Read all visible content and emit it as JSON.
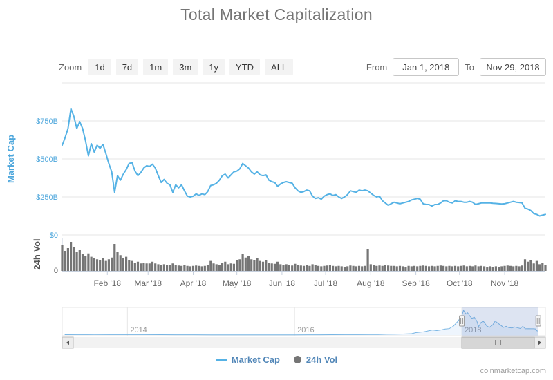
{
  "header": {
    "title": "Total Market Capitalization"
  },
  "toolbar": {
    "zoom_label": "Zoom",
    "buttons": [
      "1d",
      "7d",
      "1m",
      "3m",
      "1y",
      "YTD",
      "ALL"
    ],
    "from_label": "From",
    "from_value": "Jan 1, 2018",
    "to_label": "To",
    "to_value": "Nov 29, 2018"
  },
  "legend": {
    "market_cap": "Market Cap",
    "volume": "24h Vol"
  },
  "footer": {
    "credit": "coinmarketcap.com"
  },
  "colors": {
    "market_cap_line": "#55B2E5",
    "axis_label_blue": "#4EA7DC",
    "volume_gray": "#757575",
    "volume_axis_text": "#666666",
    "legend_text": "#5287B8",
    "grid_line": "#e6e6e6",
    "axis_line": "#c5cfdd",
    "x_label_gray": "#666666",
    "nav_line": "#79b6e4",
    "nav_fill": "rgba(124,181,236,0.13)",
    "selection_mask": "rgba(102,133,194,0.22)",
    "nav_year_label": "#999999",
    "scrollbar_track": "#f2f2f2",
    "scrollbar_thumb": "#d6d6d6",
    "scrollbar_border": "#ababab"
  },
  "chart_data": {
    "type": "line",
    "title": "Total Market Capitalization",
    "x_range": {
      "start": "Jan 1, 2018",
      "end": "Nov 29, 2018",
      "total_days": 332,
      "step_days": 2
    },
    "x_ticks": [
      {
        "day": 31,
        "label": "Feb '18"
      },
      {
        "day": 59,
        "label": "Mar '18"
      },
      {
        "day": 90,
        "label": "Apr '18"
      },
      {
        "day": 120,
        "label": "May '18"
      },
      {
        "day": 151,
        "label": "Jun '18"
      },
      {
        "day": 181,
        "label": "Jul '18"
      },
      {
        "day": 212,
        "label": "Aug '18"
      },
      {
        "day": 243,
        "label": "Sep '18"
      },
      {
        "day": 273,
        "label": "Oct '18"
      },
      {
        "day": 304,
        "label": "Nov '18"
      }
    ],
    "market_cap": {
      "name": "Market Cap",
      "type": "line",
      "axis_title": "Market Cap",
      "unit": "USD billions",
      "ylim": [
        0,
        1000
      ],
      "y_ticks": [
        {
          "v": 750,
          "label": "$750B"
        },
        {
          "v": 500,
          "label": "$500B"
        },
        {
          "v": 250,
          "label": "$250B"
        },
        {
          "v": 0,
          "label": "$0"
        }
      ],
      "values_billions": [
        590,
        640,
        700,
        830,
        780,
        700,
        745,
        700,
        620,
        520,
        600,
        545,
        590,
        570,
        595,
        535,
        470,
        415,
        280,
        390,
        360,
        400,
        430,
        470,
        475,
        420,
        390,
        410,
        440,
        455,
        450,
        465,
        440,
        390,
        345,
        365,
        340,
        330,
        280,
        330,
        310,
        330,
        290,
        255,
        250,
        255,
        270,
        260,
        270,
        265,
        285,
        325,
        330,
        340,
        360,
        390,
        400,
        375,
        395,
        415,
        420,
        435,
        470,
        455,
        440,
        415,
        400,
        415,
        395,
        390,
        395,
        360,
        350,
        345,
        320,
        335,
        345,
        350,
        345,
        340,
        310,
        290,
        280,
        285,
        295,
        290,
        255,
        240,
        245,
        235,
        255,
        265,
        270,
        260,
        265,
        250,
        240,
        250,
        265,
        290,
        285,
        280,
        295,
        290,
        295,
        290,
        275,
        260,
        250,
        255,
        225,
        210,
        195,
        205,
        215,
        210,
        205,
        210,
        215,
        220,
        230,
        235,
        240,
        235,
        205,
        200,
        200,
        190,
        200,
        200,
        210,
        225,
        225,
        215,
        210,
        225,
        220,
        220,
        215,
        215,
        220,
        215,
        200,
        205,
        210,
        210,
        210,
        210,
        208,
        207,
        205,
        203,
        205,
        210,
        215,
        220,
        215,
        213,
        210,
        175,
        170,
        160,
        140,
        135,
        125,
        130,
        135
      ]
    },
    "volume": {
      "name": "24h Vol",
      "type": "column",
      "axis_title": "24h Vol",
      "unit": "USD billions",
      "ylim": [
        0,
        80
      ],
      "y_ticks": [
        {
          "v": 0,
          "label": "0"
        }
      ],
      "values_billions": [
        62,
        48,
        55,
        70,
        58,
        45,
        50,
        40,
        36,
        42,
        34,
        30,
        28,
        26,
        30,
        24,
        28,
        32,
        65,
        45,
        38,
        30,
        34,
        26,
        24,
        20,
        22,
        18,
        20,
        18,
        18,
        22,
        18,
        16,
        14,
        16,
        15,
        14,
        18,
        14,
        13,
        12,
        14,
        12,
        11,
        12,
        13,
        12,
        11,
        12,
        14,
        24,
        18,
        16,
        15,
        20,
        22,
        16,
        18,
        17,
        25,
        28,
        40,
        32,
        35,
        28,
        25,
        30,
        24,
        22,
        26,
        20,
        18,
        17,
        22,
        16,
        15,
        16,
        14,
        13,
        17,
        14,
        13,
        12,
        14,
        12,
        16,
        14,
        12,
        11,
        12,
        13,
        14,
        12,
        11,
        12,
        11,
        10,
        11,
        13,
        12,
        11,
        12,
        11,
        12,
        52,
        16,
        14,
        12,
        13,
        12,
        14,
        13,
        12,
        12,
        11,
        12,
        11,
        10,
        12,
        11,
        12,
        11,
        12,
        13,
        12,
        11,
        12,
        11,
        12,
        13,
        12,
        11,
        12,
        11,
        12,
        11,
        12,
        13,
        11,
        12,
        11,
        13,
        11,
        12,
        11,
        10,
        11,
        10,
        11,
        10,
        11,
        12,
        13,
        12,
        11,
        12,
        11,
        13,
        28,
        22,
        25,
        18,
        24,
        16,
        20,
        14
      ]
    },
    "navigator": {
      "type": "area",
      "x_range_years": [
        2013.22,
        2019.0
      ],
      "year_ticks": [
        {
          "x": 2014,
          "label": "2014"
        },
        {
          "x": 2016,
          "label": "2016"
        },
        {
          "x": 2018,
          "label": "2018"
        }
      ],
      "selected_range_years": [
        2018.0,
        2018.915
      ],
      "x_years": [
        2013.25,
        2013.4,
        2013.6,
        2013.8,
        2014.0,
        2014.2,
        2014.4,
        2014.6,
        2014.8,
        2015.0,
        2015.2,
        2015.4,
        2015.6,
        2015.8,
        2016.0,
        2016.15,
        2016.3,
        2016.45,
        2016.6,
        2016.75,
        2016.9,
        2017.0,
        2017.1,
        2017.2,
        2017.3,
        2017.4,
        2017.45,
        2017.5,
        2017.55,
        2017.6,
        2017.65,
        2017.7,
        2017.75,
        2017.8,
        2017.85,
        2017.9,
        2017.95,
        2018.0,
        2018.02,
        2018.05,
        2018.07,
        2018.1,
        2018.12,
        2018.15,
        2018.18,
        2018.2,
        2018.23,
        2018.26,
        2018.3,
        2018.33,
        2018.37,
        2018.4,
        2018.43,
        2018.46,
        2018.5,
        2018.53,
        2018.56,
        2018.6,
        2018.63,
        2018.66,
        2018.7,
        2018.73,
        2018.76,
        2018.8,
        2018.83,
        2018.86,
        2018.88,
        2018.9,
        2018.915
      ],
      "values_billions": [
        12,
        13,
        15,
        14,
        14,
        13,
        11,
        10,
        9,
        7,
        6,
        6,
        6,
        7,
        8,
        9,
        10,
        12,
        13,
        14,
        16,
        18,
        25,
        30,
        35,
        45,
        80,
        95,
        110,
        140,
        170,
        150,
        170,
        200,
        215,
        300,
        450,
        640,
        830,
        700,
        745,
        620,
        560,
        590,
        470,
        280,
        420,
        455,
        300,
        255,
        340,
        470,
        400,
        340,
        255,
        290,
        250,
        235,
        270,
        250,
        220,
        290,
        210,
        215,
        210,
        210,
        205,
        140,
        135
      ]
    }
  }
}
